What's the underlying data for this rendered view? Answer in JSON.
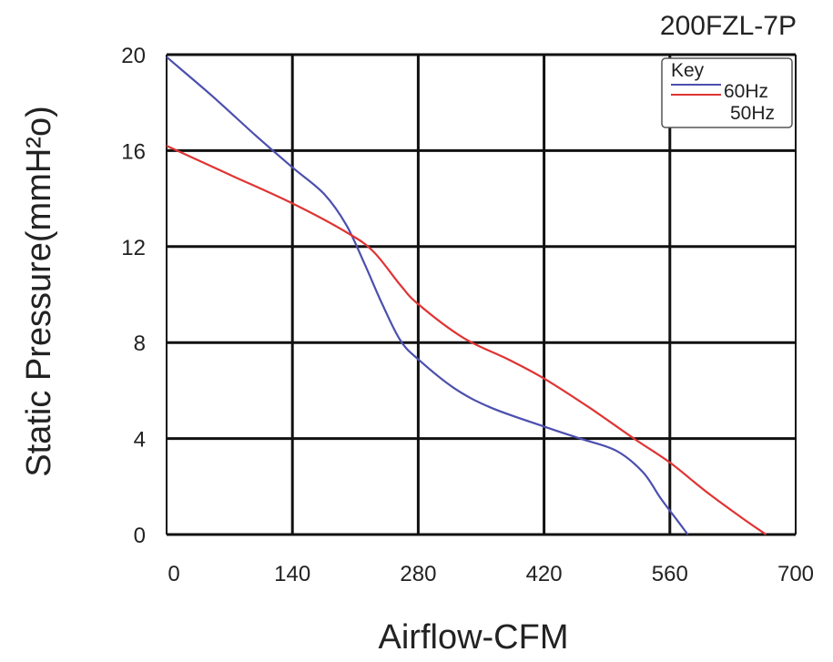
{
  "chart_data": {
    "type": "line",
    "title": "200FZL-7P",
    "xlabel": "Airflow-CFM",
    "ylabel": "Static Pressure(mmH²o)",
    "xlim": [
      0,
      700
    ],
    "ylim": [
      0,
      20
    ],
    "xticks": [
      0,
      140,
      280,
      420,
      560,
      700
    ],
    "yticks": [
      0,
      4,
      8,
      12,
      16,
      20
    ],
    "grid": true,
    "legend": {
      "title": "Key",
      "placement": "top-right"
    },
    "series": [
      {
        "name": "60Hz",
        "color": "#4b4fae",
        "x": [
          0,
          50,
          100,
          140,
          175,
          200,
          220,
          240,
          260,
          280,
          320,
          360,
          420,
          460,
          500,
          530,
          550,
          570,
          580
        ],
        "y": [
          19.9,
          18.3,
          16.6,
          15.3,
          14.2,
          12.9,
          11.3,
          9.6,
          8.1,
          7.3,
          6.1,
          5.3,
          4.5,
          4.0,
          3.5,
          2.6,
          1.5,
          0.5,
          0
        ]
      },
      {
        "name": "50Hz",
        "color": "#e03333",
        "x": [
          0,
          70,
          140,
          200,
          230,
          260,
          280,
          330,
          380,
          420,
          470,
          520,
          560,
          600,
          640,
          667
        ],
        "y": [
          16.2,
          15.0,
          13.8,
          12.6,
          11.8,
          10.4,
          9.6,
          8.2,
          7.3,
          6.5,
          5.3,
          4.0,
          3.0,
          1.8,
          0.7,
          0
        ]
      }
    ]
  }
}
